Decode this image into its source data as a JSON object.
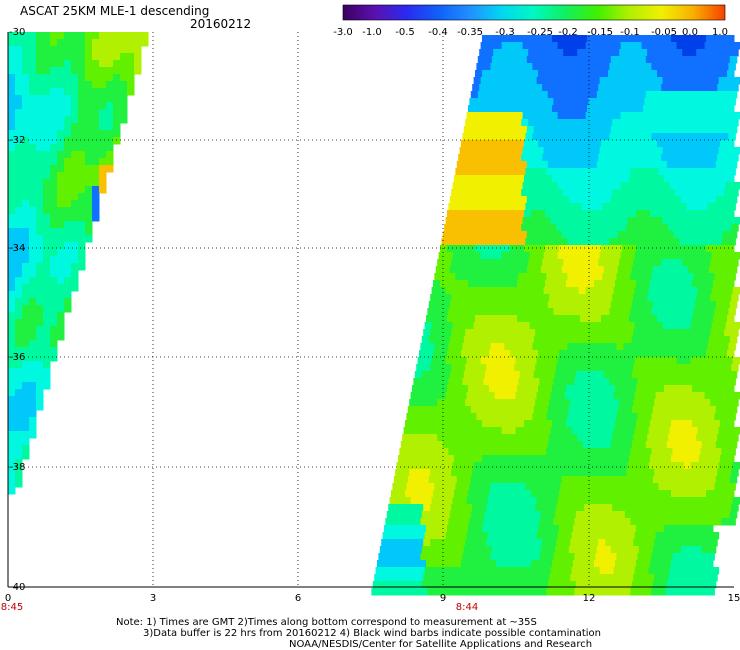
{
  "header": {
    "title": "ASCAT 25KM MLE-1 descending",
    "date": "20160212"
  },
  "colorbar": {
    "tick_labels": [
      "-3.0",
      "-1.0",
      "-0.5",
      "-0.4",
      "-0.35",
      "-0.3",
      "-0.25",
      "-0.2",
      "-0.15",
      "-0.1",
      "-0.05",
      "0.0",
      "1.0"
    ],
    "colors": [
      "#3a0060",
      "#5b10b0",
      "#2a2af0",
      "#1060f8",
      "#2090ff",
      "#00d8f0",
      "#00f8c0",
      "#10f060",
      "#40f000",
      "#b0f000",
      "#f0f000",
      "#f8b000",
      "#f84000"
    ]
  },
  "map": {
    "lat_labels": [
      "-30",
      "-32",
      "-34",
      "-36",
      "-38",
      "-40"
    ],
    "lon_labels": [
      "0",
      "3",
      "6",
      "9",
      "12",
      "15"
    ],
    "pass_times": [
      "8:45",
      "8:44"
    ],
    "pass_time_color": "#c00000"
  },
  "notes": {
    "line1": "Note: 1) Times are GMT 2)Times along bottom correspond to measurement at ~35S",
    "line2": "3)Data buffer is 22 hrs from 20160212 4) Black wind barbs indicate possible contamination",
    "line3": "NOAA/NESDIS/Center for Satellite Applications and Research"
  }
}
